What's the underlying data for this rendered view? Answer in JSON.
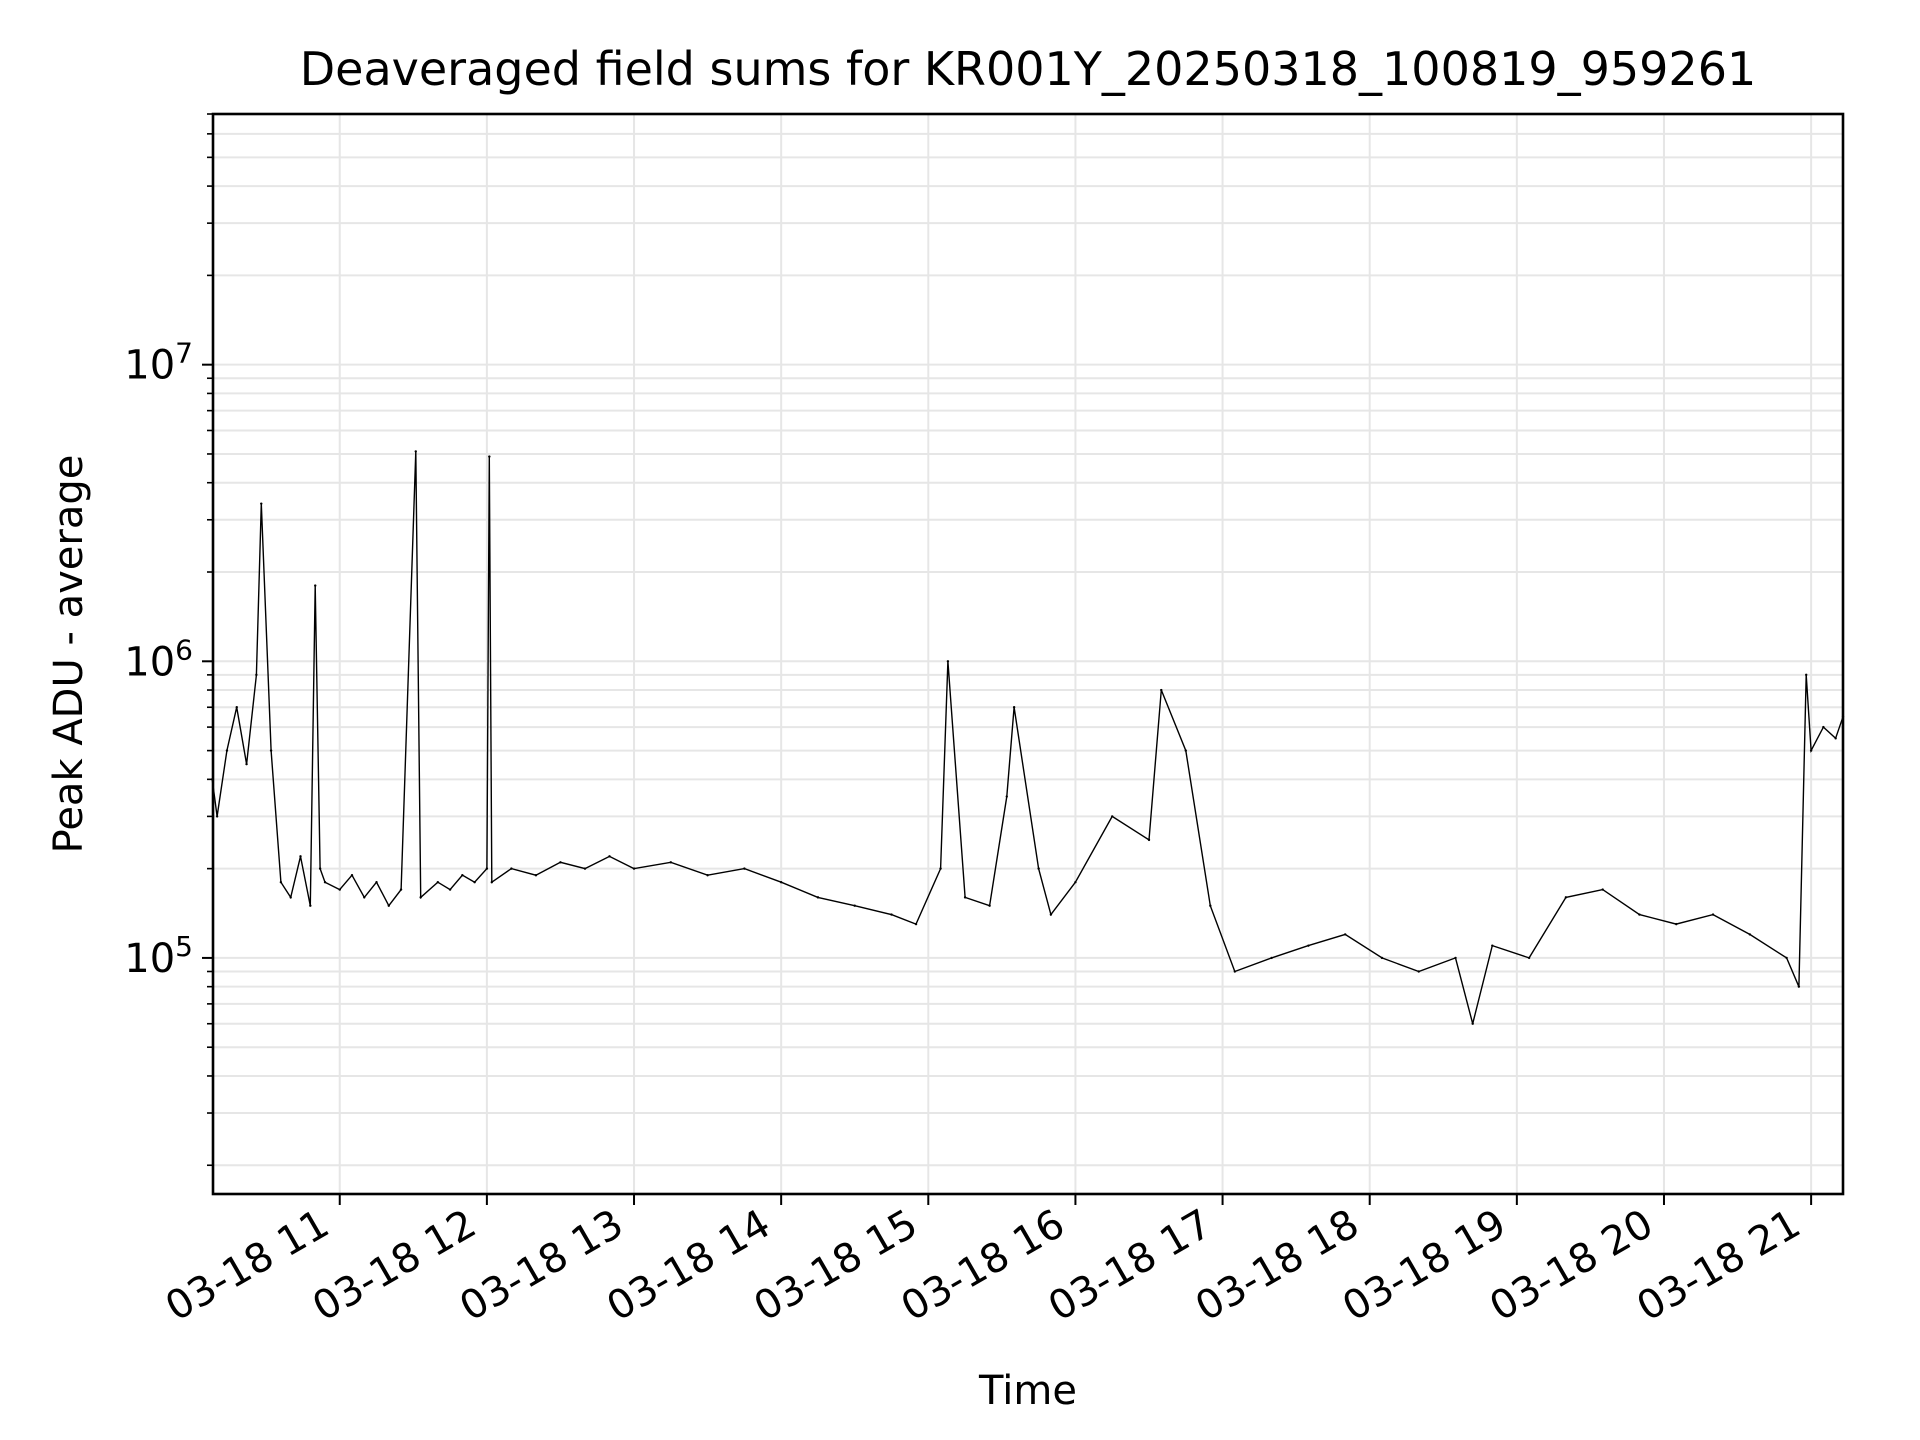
{
  "chart_data": {
    "type": "line",
    "title": "Deaveraged field sums for KR001Y_20250318_100819_959261",
    "xlabel": "Time",
    "ylabel": "Peak ADU - average",
    "y_scale": "log",
    "grid": true,
    "legend": "none",
    "ylim": [
      16000,
      70000000
    ],
    "xlim": [
      "2025-03-18 10:08:19",
      "2025-03-18 21:13:00"
    ],
    "x_ticks": [
      {
        "label": "03-18 11",
        "time": "2025-03-18 11:00"
      },
      {
        "label": "03-18 12",
        "time": "2025-03-18 12:00"
      },
      {
        "label": "03-18 13",
        "time": "2025-03-18 13:00"
      },
      {
        "label": "03-18 14",
        "time": "2025-03-18 14:00"
      },
      {
        "label": "03-18 15",
        "time": "2025-03-18 15:00"
      },
      {
        "label": "03-18 16",
        "time": "2025-03-18 16:00"
      },
      {
        "label": "03-18 17",
        "time": "2025-03-18 17:00"
      },
      {
        "label": "03-18 18",
        "time": "2025-03-18 18:00"
      },
      {
        "label": "03-18 19",
        "time": "2025-03-18 19:00"
      },
      {
        "label": "03-18 20",
        "time": "2025-03-18 20:00"
      },
      {
        "label": "03-18 21",
        "time": "2025-03-18 21:00"
      }
    ],
    "y_ticks": [
      {
        "base": "10",
        "exp": "5",
        "value": 100000
      },
      {
        "base": "10",
        "exp": "6",
        "value": 1000000
      },
      {
        "base": "10",
        "exp": "7",
        "value": 10000000
      }
    ],
    "line_color": "#000000",
    "grid_color": "#e6e6e6",
    "series": [
      {
        "x": [
          "2025-03-18 10:08",
          "2025-03-18 10:10",
          "2025-03-18 10:14",
          "2025-03-18 10:18",
          "2025-03-18 10:22",
          "2025-03-18 10:26",
          "2025-03-18 10:28",
          "2025-03-18 10:32",
          "2025-03-18 10:36",
          "2025-03-18 10:40",
          "2025-03-18 10:44",
          "2025-03-18 10:48",
          "2025-03-18 10:50",
          "2025-03-18 10:52",
          "2025-03-18 10:54",
          "2025-03-18 11:00",
          "2025-03-18 11:05",
          "2025-03-18 11:10",
          "2025-03-18 11:15",
          "2025-03-18 11:20",
          "2025-03-18 11:25",
          "2025-03-18 11:31",
          "2025-03-18 11:33",
          "2025-03-18 11:40",
          "2025-03-18 11:45",
          "2025-03-18 11:50",
          "2025-03-18 11:55",
          "2025-03-18 12:00",
          "2025-03-18 12:01",
          "2025-03-18 12:02",
          "2025-03-18 12:10",
          "2025-03-18 12:20",
          "2025-03-18 12:30",
          "2025-03-18 12:40",
          "2025-03-18 12:50",
          "2025-03-18 13:00",
          "2025-03-18 13:15",
          "2025-03-18 13:30",
          "2025-03-18 13:45",
          "2025-03-18 14:00",
          "2025-03-18 14:15",
          "2025-03-18 14:30",
          "2025-03-18 14:45",
          "2025-03-18 14:55",
          "2025-03-18 15:05",
          "2025-03-18 15:08",
          "2025-03-18 15:15",
          "2025-03-18 15:25",
          "2025-03-18 15:32",
          "2025-03-18 15:35",
          "2025-03-18 15:45",
          "2025-03-18 15:50",
          "2025-03-18 16:00",
          "2025-03-18 16:15",
          "2025-03-18 16:30",
          "2025-03-18 16:35",
          "2025-03-18 16:45",
          "2025-03-18 16:55",
          "2025-03-18 17:05",
          "2025-03-18 17:20",
          "2025-03-18 17:35",
          "2025-03-18 17:50",
          "2025-03-18 18:05",
          "2025-03-18 18:20",
          "2025-03-18 18:35",
          "2025-03-18 18:42",
          "2025-03-18 18:50",
          "2025-03-18 19:05",
          "2025-03-18 19:20",
          "2025-03-18 19:35",
          "2025-03-18 19:50",
          "2025-03-18 20:05",
          "2025-03-18 20:20",
          "2025-03-18 20:35",
          "2025-03-18 20:50",
          "2025-03-18 20:55",
          "2025-03-18 20:58",
          "2025-03-18 21:00",
          "2025-03-18 21:05",
          "2025-03-18 21:10",
          "2025-03-18 21:13"
        ],
        "y": [
          400000,
          300000,
          500000,
          700000,
          450000,
          900000,
          3400000,
          500000,
          180000,
          160000,
          220000,
          150000,
          1800000,
          200000,
          180000,
          170000,
          190000,
          160000,
          180000,
          150000,
          170000,
          5100000,
          160000,
          180000,
          170000,
          190000,
          180000,
          200000,
          4900000,
          180000,
          200000,
          190000,
          210000,
          200000,
          220000,
          200000,
          210000,
          190000,
          200000,
          180000,
          160000,
          150000,
          140000,
          130000,
          200000,
          1000000,
          160000,
          150000,
          350000,
          700000,
          200000,
          140000,
          180000,
          300000,
          250000,
          800000,
          500000,
          150000,
          90000,
          100000,
          110000,
          120000,
          100000,
          90000,
          100000,
          60000,
          110000,
          100000,
          160000,
          170000,
          140000,
          130000,
          140000,
          120000,
          100000,
          80000,
          900000,
          500000,
          600000,
          550000,
          650000
        ]
      }
    ]
  }
}
